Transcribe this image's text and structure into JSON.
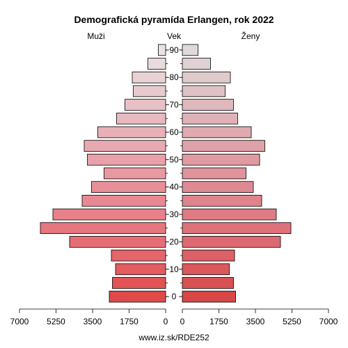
{
  "chart_data": {
    "type": "bar",
    "title": "Demografická pyramída Erlangen, rok 2022",
    "left_label": "Muži",
    "center_label": "Vek",
    "right_label": "Ženy",
    "footer": "www.iz.sk/RDE252",
    "xlim": [
      0,
      7000
    ],
    "x_ticks_left": [
      "7000",
      "5250",
      "3500",
      "1750",
      "0"
    ],
    "x_ticks_right": [
      "0",
      "1750",
      "3500",
      "5250",
      "7000"
    ],
    "age_ticks": [
      "0",
      "10",
      "20",
      "30",
      "40",
      "50",
      "60",
      "70",
      "80",
      "90"
    ],
    "age_groups": [
      "0-4",
      "5-9",
      "10-14",
      "15-19",
      "20-24",
      "25-29",
      "30-34",
      "35-39",
      "40-44",
      "45-49",
      "50-54",
      "55-59",
      "60-64",
      "65-69",
      "70-74",
      "75-79",
      "80-84",
      "85-89",
      "90+"
    ],
    "series": [
      {
        "name": "Muži",
        "values": [
          2700,
          2550,
          2400,
          2600,
          4600,
          6000,
          5400,
          4000,
          3550,
          2950,
          3750,
          3900,
          3250,
          2350,
          1950,
          1550,
          1600,
          850,
          350
        ]
      },
      {
        "name": "Ženy",
        "values": [
          2550,
          2450,
          2250,
          2500,
          4700,
          5200,
          4500,
          3800,
          3400,
          3050,
          3700,
          3950,
          3300,
          2650,
          2450,
          2050,
          2300,
          1350,
          750
        ]
      }
    ],
    "colors": {
      "bottom": "#e04a4a",
      "peak": "#e8808a",
      "top": "#e8e2e4",
      "stroke": "#000000"
    }
  }
}
